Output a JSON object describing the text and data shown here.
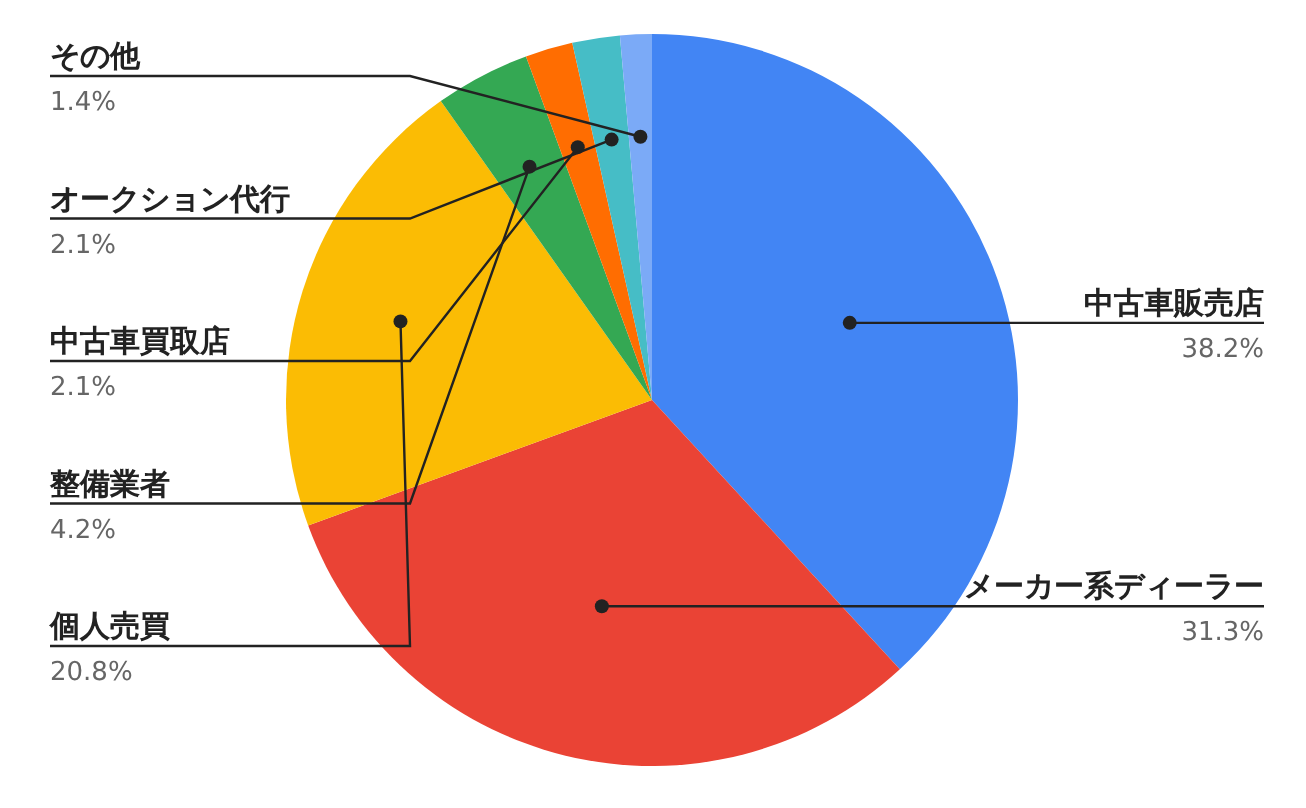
{
  "chart_data": {
    "type": "pie",
    "categories": [
      "中古車販売店",
      "メーカー系ディーラー",
      "個人売買",
      "整備業者",
      "中古車買取店",
      "オークション代行",
      "その他"
    ],
    "values": [
      38.2,
      31.3,
      20.8,
      4.2,
      2.1,
      2.1,
      1.4
    ],
    "colors": [
      "#4285f4",
      "#ea4335",
      "#fbbc04",
      "#34a853",
      "#ff6d01",
      "#46bdc6",
      "#7baaf7"
    ],
    "value_labels": [
      "38.2%",
      "31.3%",
      "20.8%",
      "4.2%",
      "2.1%",
      "2.1%",
      "1.4%"
    ]
  }
}
